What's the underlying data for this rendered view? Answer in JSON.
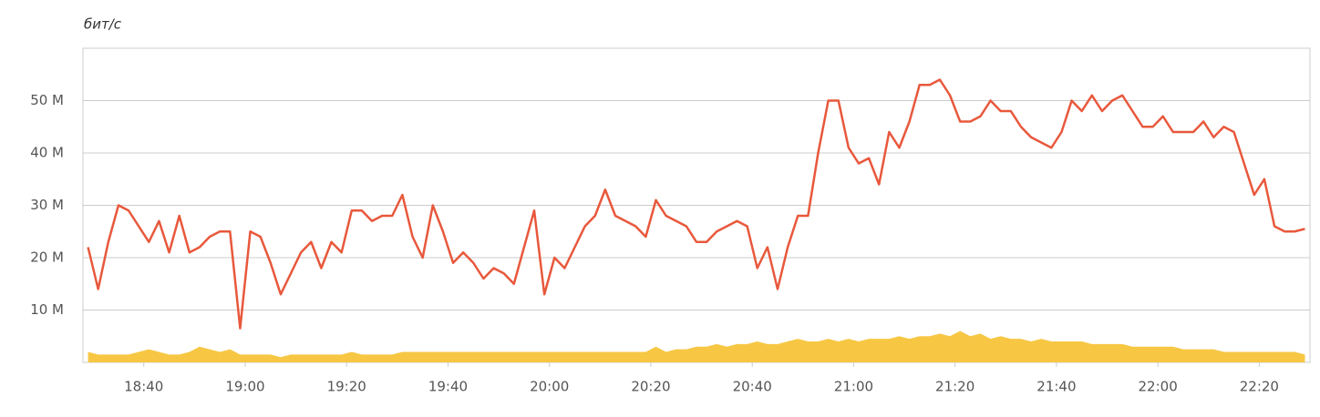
{
  "chart_data": {
    "type": "line",
    "y_unit": "бит/с",
    "x": [
      "18:29",
      "18:31",
      "18:33",
      "18:35",
      "18:37",
      "18:39",
      "18:41",
      "18:43",
      "18:45",
      "18:47",
      "18:49",
      "18:51",
      "18:53",
      "18:55",
      "18:57",
      "18:59",
      "19:01",
      "19:03",
      "19:05",
      "19:07",
      "19:09",
      "19:11",
      "19:13",
      "19:15",
      "19:17",
      "19:19",
      "19:21",
      "19:23",
      "19:25",
      "19:27",
      "19:29",
      "19:31",
      "19:33",
      "19:35",
      "19:37",
      "19:39",
      "19:41",
      "19:43",
      "19:45",
      "19:47",
      "19:49",
      "19:51",
      "19:53",
      "19:55",
      "19:57",
      "19:59",
      "20:01",
      "20:03",
      "20:05",
      "20:07",
      "20:09",
      "20:11",
      "20:13",
      "20:15",
      "20:17",
      "20:19",
      "20:21",
      "20:23",
      "20:25",
      "20:27",
      "20:29",
      "20:31",
      "20:33",
      "20:35",
      "20:37",
      "20:39",
      "20:41",
      "20:43",
      "20:45",
      "20:47",
      "20:49",
      "20:51",
      "20:53",
      "20:55",
      "20:57",
      "20:59",
      "21:01",
      "21:03",
      "21:05",
      "21:07",
      "21:09",
      "21:11",
      "21:13",
      "21:15",
      "21:17",
      "21:19",
      "21:21",
      "21:23",
      "21:25",
      "21:27",
      "21:29",
      "21:31",
      "21:33",
      "21:35",
      "21:37",
      "21:39",
      "21:41",
      "21:43",
      "21:45",
      "21:47",
      "21:49",
      "21:51",
      "21:53",
      "21:55",
      "21:57",
      "21:59",
      "22:01",
      "22:03",
      "22:05",
      "22:07",
      "22:09",
      "22:11",
      "22:13",
      "22:15",
      "22:17",
      "22:19",
      "22:21",
      "22:23",
      "22:25",
      "22:27",
      "22:29"
    ],
    "series": [
      {
        "color": "#f7c744",
        "fill": true,
        "values": [
          2,
          1.5,
          1.5,
          1.5,
          1.5,
          2,
          2.5,
          2,
          1.5,
          1.5,
          2,
          3,
          2.5,
          2,
          2.5,
          1.5,
          1.5,
          1.5,
          1.5,
          1,
          1.5,
          1.5,
          1.5,
          1.5,
          1.5,
          1.5,
          2,
          1.5,
          1.5,
          1.5,
          1.5,
          2,
          2,
          2,
          2,
          2,
          2,
          2,
          2,
          2,
          2,
          2,
          2,
          2,
          2,
          2,
          2,
          2,
          2,
          2,
          2,
          2,
          2,
          2,
          2,
          2,
          3,
          2,
          2.5,
          2.5,
          3,
          3,
          3.5,
          3,
          3.5,
          3.5,
          4,
          3.5,
          3.5,
          4,
          4.5,
          4,
          4,
          4.5,
          4,
          4.5,
          4,
          4.5,
          4.5,
          4.5,
          5,
          4.5,
          5,
          5,
          5.5,
          5,
          6,
          5,
          5.5,
          4.5,
          5,
          4.5,
          4.5,
          4,
          4.5,
          4,
          4,
          4,
          4,
          3.5,
          3.5,
          3.5,
          3.5,
          3,
          3,
          3,
          3,
          3,
          2.5,
          2.5,
          2.5,
          2.5,
          2,
          2,
          2,
          2,
          2,
          2,
          2,
          2,
          1.5
        ]
      },
      {
        "color": "#e8583c",
        "values": [
          22,
          14,
          23,
          30,
          29,
          26,
          23,
          27,
          21,
          28,
          21,
          22,
          24,
          25,
          25,
          6.5,
          25,
          24,
          19,
          13,
          17,
          21,
          23,
          18,
          23,
          21,
          29,
          29,
          27,
          28,
          28,
          32,
          24,
          20,
          30,
          25,
          19,
          21,
          19,
          16,
          18,
          17,
          15,
          22,
          29,
          13,
          20,
          18,
          22,
          26,
          28,
          33,
          28,
          27,
          26,
          24,
          31,
          28,
          27,
          26,
          23,
          23,
          25,
          26,
          27,
          26,
          18,
          22,
          14,
          22,
          28,
          28,
          40,
          50,
          50,
          41,
          38,
          39,
          34,
          44,
          41,
          46,
          53,
          53,
          54,
          51,
          46,
          46,
          47,
          50,
          48,
          48,
          45,
          43,
          42,
          41,
          44,
          50,
          48,
          51,
          48,
          50,
          51,
          48,
          45,
          45,
          47,
          44,
          44,
          44,
          46,
          43,
          45,
          44,
          38,
          32,
          35,
          26,
          25,
          25,
          25.5
        ]
      }
    ],
    "xlim": [
      "18:28",
      "22:30"
    ],
    "xticks": [
      "18:40",
      "19:00",
      "19:20",
      "19:40",
      "20:00",
      "20:20",
      "20:40",
      "21:00",
      "21:20",
      "21:40",
      "22:00",
      "22:20"
    ],
    "ylim": [
      0,
      60
    ],
    "yticks": [
      {
        "value": 10,
        "label": "10 M"
      },
      {
        "value": 20,
        "label": "20 M"
      },
      {
        "value": 30,
        "label": "30 M"
      },
      {
        "value": 40,
        "label": "40 M"
      },
      {
        "value": 50,
        "label": "50 M"
      }
    ],
    "grid": true
  }
}
